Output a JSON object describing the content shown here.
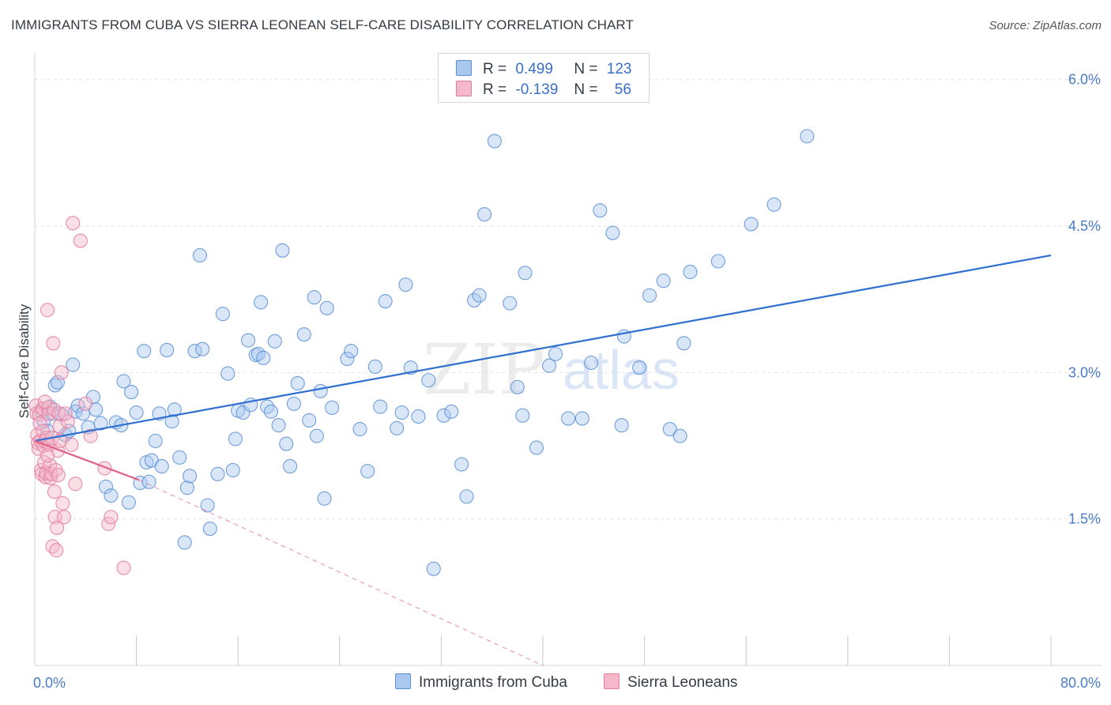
{
  "title": "IMMIGRANTS FROM CUBA VS SIERRA LEONEAN SELF-CARE DISABILITY CORRELATION CHART",
  "source": "Source: ZipAtlas.com",
  "watermark": {
    "zip": "ZIP",
    "atlas": "atlas"
  },
  "legend_top": [
    {
      "r_label": "R =",
      "r_value": "0.499",
      "n_label": "N =",
      "n_value": "123"
    },
    {
      "r_label": "R =",
      "r_value": "-0.139",
      "n_label": "N =",
      "n_value": "56"
    }
  ],
  "legend_bottom": [
    {
      "label": "Immigrants from Cuba"
    },
    {
      "label": "Sierra Leoneans"
    }
  ],
  "colors": {
    "cuba_fill": "#a9c7ef",
    "cuba_stroke": "#5a8fd6",
    "cuba_line": "#2f6fcf",
    "sl_fill": "#f5b8ca",
    "sl_stroke": "#e47d9e",
    "sl_line": "#e0608a",
    "grid": "#e3e3e3",
    "axis_text": "#4a7cc8"
  },
  "chart_data": {
    "type": "scatter",
    "title": "IMMIGRANTS FROM CUBA VS SIERRA LEONEAN SELF-CARE DISABILITY CORRELATION CHART",
    "xlabel": "",
    "ylabel": "Self-Care Disability",
    "xlim": [
      0,
      80
    ],
    "ylim": [
      0,
      6.2
    ],
    "x_tick_labels": [
      "0.0%",
      "80.0%"
    ],
    "y_ticks": [
      1.5,
      3.0,
      4.5,
      6.0
    ],
    "y_tick_labels": [
      "1.5%",
      "3.0%",
      "4.5%",
      "6.0%"
    ],
    "grid": "horizontal dashed",
    "legend_position": "top-center",
    "series": [
      {
        "name": "Immigrants from Cuba",
        "r": 0.499,
        "n": 123,
        "trend": {
          "x": [
            0,
            80
          ],
          "y": [
            2.3,
            4.2
          ],
          "style": "solid"
        },
        "points": [
          [
            0.5,
            2.6
          ],
          [
            0.7,
            2.5
          ],
          [
            1.0,
            2.4
          ],
          [
            1.2,
            2.65
          ],
          [
            1.4,
            2.58
          ],
          [
            1.6,
            2.87
          ],
          [
            1.8,
            2.9
          ],
          [
            2.1,
            2.57
          ],
          [
            2.4,
            2.36
          ],
          [
            2.7,
            2.4
          ],
          [
            3.0,
            3.08
          ],
          [
            3.2,
            2.6
          ],
          [
            3.4,
            2.66
          ],
          [
            3.8,
            2.58
          ],
          [
            4.2,
            2.44
          ],
          [
            4.6,
            2.75
          ],
          [
            4.8,
            2.62
          ],
          [
            5.2,
            2.48
          ],
          [
            5.6,
            1.83
          ],
          [
            6.0,
            1.74
          ],
          [
            6.4,
            2.49
          ],
          [
            6.8,
            2.46
          ],
          [
            7.0,
            2.91
          ],
          [
            7.4,
            1.67
          ],
          [
            7.6,
            2.8
          ],
          [
            8.0,
            2.59
          ],
          [
            8.3,
            1.87
          ],
          [
            8.6,
            3.22
          ],
          [
            8.8,
            2.08
          ],
          [
            9.0,
            1.88
          ],
          [
            9.2,
            2.1
          ],
          [
            9.5,
            2.3
          ],
          [
            9.8,
            2.58
          ],
          [
            10.0,
            2.04
          ],
          [
            10.4,
            3.23
          ],
          [
            10.8,
            2.5
          ],
          [
            11.0,
            2.62
          ],
          [
            11.4,
            2.13
          ],
          [
            11.8,
            1.26
          ],
          [
            12.0,
            1.82
          ],
          [
            12.2,
            1.94
          ],
          [
            12.6,
            3.22
          ],
          [
            13.0,
            4.2
          ],
          [
            13.2,
            3.24
          ],
          [
            13.6,
            1.64
          ],
          [
            13.8,
            1.4
          ],
          [
            14.4,
            1.96
          ],
          [
            14.8,
            3.6
          ],
          [
            15.2,
            2.99
          ],
          [
            15.6,
            2.0
          ],
          [
            15.8,
            2.32
          ],
          [
            16.0,
            2.61
          ],
          [
            16.4,
            2.59
          ],
          [
            16.8,
            3.33
          ],
          [
            17.0,
            2.67
          ],
          [
            17.4,
            3.18
          ],
          [
            17.6,
            3.19
          ],
          [
            17.8,
            3.72
          ],
          [
            18.0,
            3.15
          ],
          [
            18.3,
            2.65
          ],
          [
            18.6,
            2.6
          ],
          [
            18.9,
            3.32
          ],
          [
            19.2,
            2.46
          ],
          [
            19.5,
            4.25
          ],
          [
            19.8,
            2.27
          ],
          [
            20.1,
            2.04
          ],
          [
            20.4,
            2.68
          ],
          [
            20.7,
            2.89
          ],
          [
            21.2,
            3.39
          ],
          [
            21.6,
            2.51
          ],
          [
            22.0,
            3.77
          ],
          [
            22.2,
            2.35
          ],
          [
            22.5,
            2.81
          ],
          [
            22.8,
            1.71
          ],
          [
            23.0,
            3.66
          ],
          [
            23.4,
            2.64
          ],
          [
            24.6,
            3.14
          ],
          [
            24.9,
            3.22
          ],
          [
            25.6,
            2.42
          ],
          [
            26.2,
            1.99
          ],
          [
            26.8,
            3.06
          ],
          [
            27.2,
            2.65
          ],
          [
            27.6,
            3.73
          ],
          [
            28.5,
            2.43
          ],
          [
            28.9,
            2.59
          ],
          [
            29.2,
            3.9
          ],
          [
            29.6,
            3.05
          ],
          [
            30.2,
            2.55
          ],
          [
            31.0,
            2.92
          ],
          [
            31.4,
            0.99
          ],
          [
            32.2,
            2.56
          ],
          [
            32.8,
            2.6
          ],
          [
            33.6,
            2.06
          ],
          [
            34.0,
            1.73
          ],
          [
            34.6,
            3.74
          ],
          [
            35.0,
            3.79
          ],
          [
            35.4,
            4.62
          ],
          [
            36.2,
            5.37
          ],
          [
            37.4,
            3.71
          ],
          [
            38.0,
            2.85
          ],
          [
            38.4,
            2.56
          ],
          [
            38.6,
            4.02
          ],
          [
            39.5,
            2.23
          ],
          [
            40.5,
            3.07
          ],
          [
            41.0,
            3.19
          ],
          [
            42.0,
            2.53
          ],
          [
            43.1,
            2.53
          ],
          [
            43.8,
            3.1
          ],
          [
            44.5,
            4.66
          ],
          [
            45.5,
            4.43
          ],
          [
            46.2,
            2.46
          ],
          [
            46.4,
            3.37
          ],
          [
            47.6,
            3.05
          ],
          [
            48.4,
            3.79
          ],
          [
            49.5,
            3.94
          ],
          [
            50.0,
            2.42
          ],
          [
            50.8,
            2.35
          ],
          [
            51.1,
            3.3
          ],
          [
            51.6,
            4.03
          ],
          [
            53.8,
            4.14
          ],
          [
            56.4,
            4.52
          ],
          [
            58.2,
            4.72
          ],
          [
            60.8,
            5.42
          ]
        ]
      },
      {
        "name": "Sierra Leoneans",
        "r": -0.139,
        "n": 56,
        "trend": {
          "x": [
            0,
            8.2
          ],
          "y": [
            2.3,
            1.9
          ],
          "style": "solid",
          "extended": {
            "x": [
              8.2,
              40
            ],
            "y": [
              1.9,
              0.0
            ],
            "style": "dashed"
          }
        },
        "points": [
          [
            0.1,
            2.66
          ],
          [
            0.15,
            2.58
          ],
          [
            0.2,
            2.36
          ],
          [
            0.25,
            2.28
          ],
          [
            0.3,
            2.22
          ],
          [
            0.35,
            2.57
          ],
          [
            0.4,
            2.48
          ],
          [
            0.45,
            2.3
          ],
          [
            0.5,
            2.0
          ],
          [
            0.55,
            1.96
          ],
          [
            0.6,
            2.63
          ],
          [
            0.65,
            2.4
          ],
          [
            0.7,
            2.25
          ],
          [
            0.75,
            2.08
          ],
          [
            0.8,
            2.3
          ],
          [
            0.85,
            1.93
          ],
          [
            0.9,
            1.97
          ],
          [
            0.95,
            2.33
          ],
          [
            1.0,
            3.64
          ],
          [
            1.05,
            2.64
          ],
          [
            1.1,
            2.58
          ],
          [
            1.15,
            2.26
          ],
          [
            1.2,
            2.05
          ],
          [
            1.25,
            1.92
          ],
          [
            1.3,
            1.96
          ],
          [
            1.35,
            2.33
          ],
          [
            1.4,
            1.22
          ],
          [
            1.45,
            3.3
          ],
          [
            1.5,
            2.62
          ],
          [
            1.55,
            1.78
          ],
          [
            1.6,
            1.52
          ],
          [
            1.65,
            2.0
          ],
          [
            1.7,
            1.18
          ],
          [
            1.75,
            1.41
          ],
          [
            1.8,
            2.2
          ],
          [
            1.85,
            1.95
          ],
          [
            1.9,
            2.58
          ],
          [
            1.95,
            2.45
          ],
          [
            2.1,
            3.0
          ],
          [
            2.2,
            1.66
          ],
          [
            2.3,
            1.52
          ],
          [
            2.6,
            2.5
          ],
          [
            3.0,
            4.53
          ],
          [
            3.2,
            1.86
          ],
          [
            3.6,
            4.35
          ],
          [
            4.0,
            2.68
          ],
          [
            4.4,
            2.35
          ],
          [
            5.5,
            2.02
          ],
          [
            5.8,
            1.45
          ],
          [
            6.0,
            1.52
          ],
          [
            7.0,
            1.0
          ],
          [
            2.4,
            2.58
          ],
          [
            2.9,
            2.26
          ],
          [
            1.0,
            2.15
          ],
          [
            0.8,
            2.7
          ],
          [
            2.0,
            2.3
          ]
        ]
      }
    ]
  }
}
